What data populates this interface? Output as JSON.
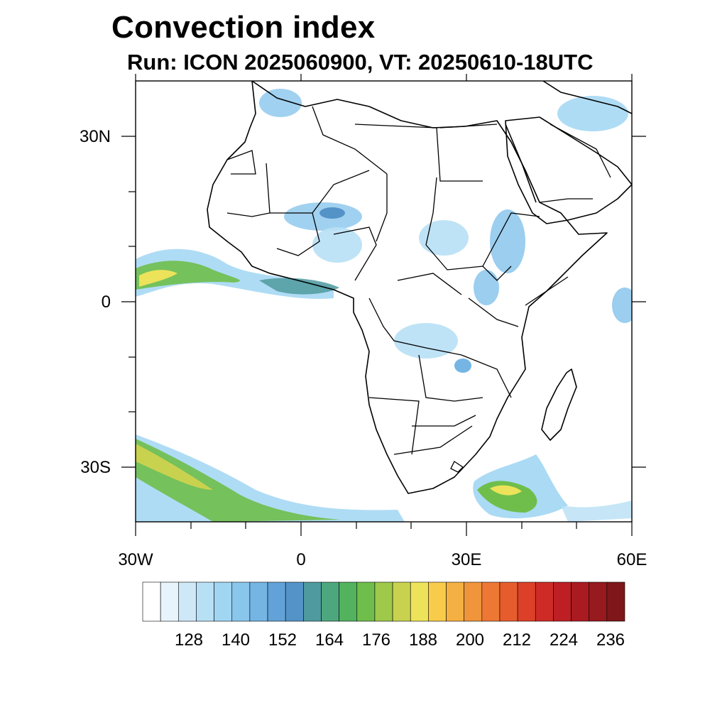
{
  "title": "Convection index",
  "subtitle": "Run: ICON 2025060900,  VT: 20250610-18UTC",
  "axes": {
    "lat_labels": [
      "30N",
      "0",
      "30S"
    ],
    "lon_labels": [
      "30W",
      "0",
      "30E",
      "60E"
    ]
  },
  "colorbar": {
    "labels": [
      "128",
      "140",
      "152",
      "164",
      "176",
      "188",
      "200",
      "212",
      "224",
      "236"
    ],
    "colors": [
      "#ffffff",
      "#e8f4fb",
      "#cfe8f7",
      "#b8e0f5",
      "#a1d6f3",
      "#89c6ec",
      "#74b5e4",
      "#62a2d8",
      "#5493c8",
      "#4f9a9e",
      "#4da77e",
      "#52b25e",
      "#6fbe4b",
      "#9fc94a",
      "#c9d24e",
      "#ede35a",
      "#f8cb4b",
      "#f4b042",
      "#f0953b",
      "#ec7834",
      "#e65c2d",
      "#dc4028",
      "#cf2b26",
      "#bd1f24",
      "#aa1a21",
      "#961a1e",
      "#7f171a"
    ]
  }
}
